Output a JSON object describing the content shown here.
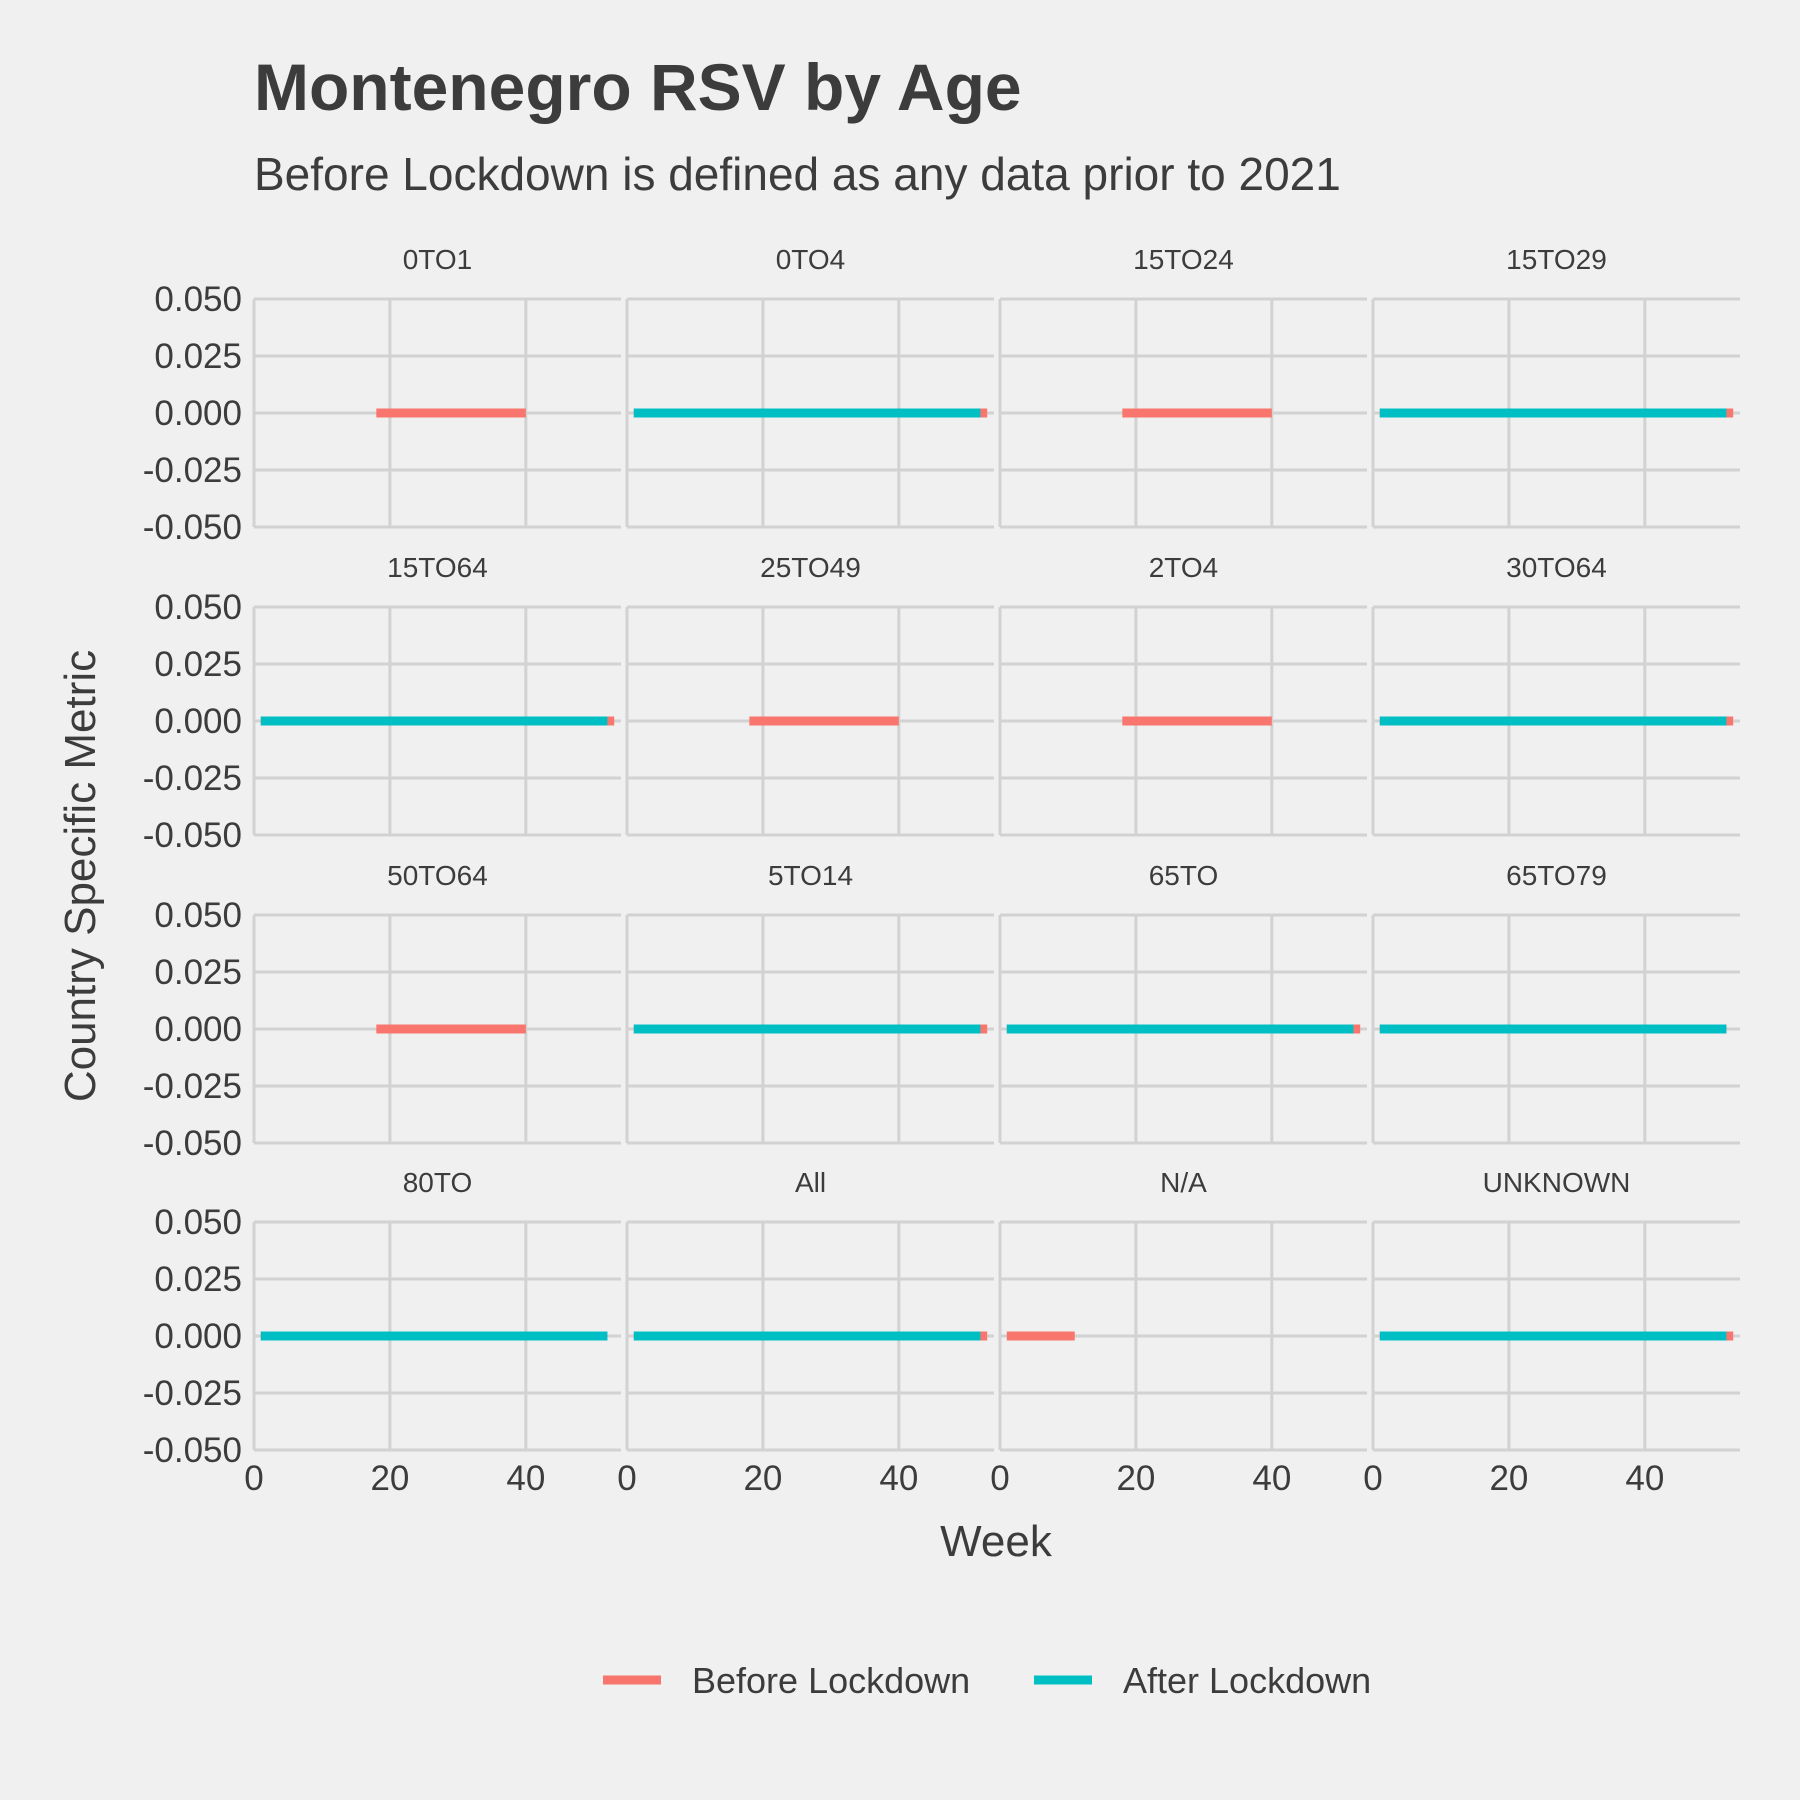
{
  "colors": {
    "before": "#f8766d",
    "after": "#00bfc4",
    "background": "#f0f0f0",
    "grid": "#d2d2d2",
    "text": "#3c3c3c"
  },
  "chart_data": {
    "type": "line",
    "title": "Montenegro RSV by Age",
    "subtitle": "Before Lockdown is defined as any data prior to 2021",
    "xlabel": "Week",
    "ylabel": "Country Specific Metric",
    "xlim": [
      0,
      54
    ],
    "ylim": [
      -0.05,
      0.05
    ],
    "x_ticks": [
      0,
      20,
      40
    ],
    "x_tick_labels": [
      "0",
      "20",
      "40"
    ],
    "y_ticks": [
      0.05,
      0.025,
      0,
      -0.025,
      -0.05
    ],
    "y_tick_labels": [
      "0.050",
      "0.025",
      "0.000",
      "-0.025",
      "-0.050"
    ],
    "grid": true,
    "legend": {
      "position": "bottom",
      "entries": [
        {
          "label": "Before Lockdown",
          "series": "before"
        },
        {
          "label": "After Lockdown",
          "series": "after"
        }
      ]
    },
    "facets": [
      {
        "label": "0TO1",
        "before": [
          18,
          40
        ],
        "after": null
      },
      {
        "label": "0TO4",
        "before": [
          1,
          53
        ],
        "after": [
          1,
          52
        ]
      },
      {
        "label": "15TO24",
        "before": [
          18,
          40
        ],
        "after": null
      },
      {
        "label": "15TO29",
        "before": [
          1,
          53
        ],
        "after": [
          1,
          52
        ]
      },
      {
        "label": "15TO64",
        "before": [
          1,
          53
        ],
        "after": [
          1,
          52
        ]
      },
      {
        "label": "25TO49",
        "before": [
          18,
          40
        ],
        "after": null
      },
      {
        "label": "2TO4",
        "before": [
          18,
          40
        ],
        "after": null
      },
      {
        "label": "30TO64",
        "before": [
          1,
          53
        ],
        "after": [
          1,
          52
        ]
      },
      {
        "label": "50TO64",
        "before": [
          18,
          40
        ],
        "after": null
      },
      {
        "label": "5TO14",
        "before": [
          1,
          53
        ],
        "after": [
          1,
          52
        ]
      },
      {
        "label": "65TO",
        "before": [
          1,
          53
        ],
        "after": [
          1,
          52
        ]
      },
      {
        "label": "65TO79",
        "before": [
          1,
          52
        ],
        "after": [
          1,
          52
        ]
      },
      {
        "label": "80TO",
        "before": [
          1,
          52
        ],
        "after": [
          1,
          52
        ]
      },
      {
        "label": "All",
        "before": [
          1,
          53
        ],
        "after": [
          1,
          52
        ]
      },
      {
        "label": "N/A",
        "before": [
          1,
          11
        ],
        "after": null
      },
      {
        "label": "UNKNOWN",
        "before": [
          1,
          53
        ],
        "after": [
          1,
          52
        ]
      }
    ],
    "value": 0
  }
}
